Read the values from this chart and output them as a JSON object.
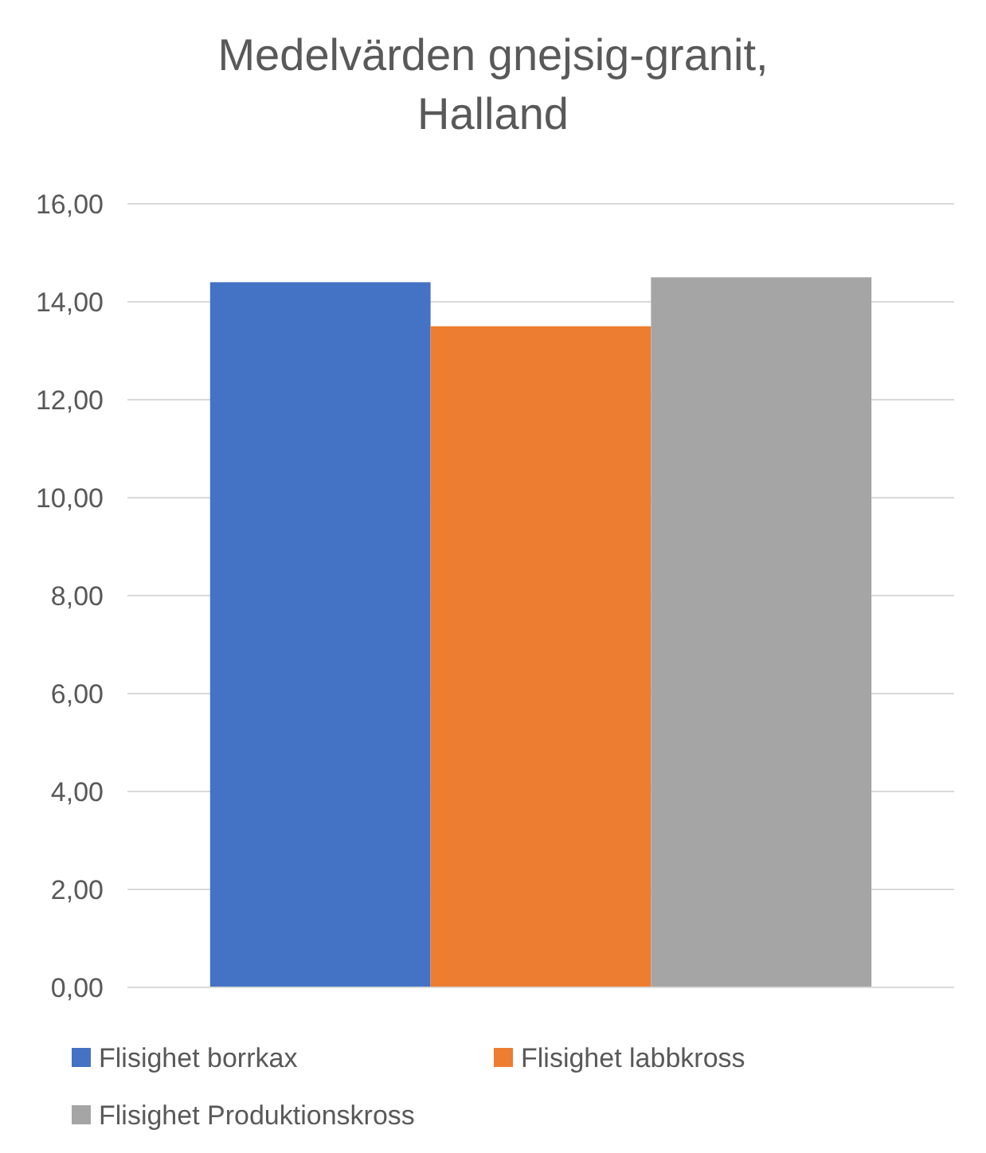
{
  "chart_data": {
    "type": "bar",
    "title": "Medelvärden gnejsig-granit, Halland",
    "categories": [
      null
    ],
    "series": [
      {
        "name": "Flisighet borrkax",
        "color": "#4472c4",
        "values": [
          14.4
        ]
      },
      {
        "name": "Flisighet labbkross",
        "color": "#ed7d31",
        "values": [
          13.5
        ]
      },
      {
        "name": "Flisighet Produktionskross",
        "color": "#a5a5a5",
        "values": [
          14.5
        ]
      }
    ],
    "ylim": [
      0,
      16
    ],
    "yticks": [
      {
        "value": 0,
        "label": "0,00"
      },
      {
        "value": 2,
        "label": "2,00"
      },
      {
        "value": 4,
        "label": "4,00"
      },
      {
        "value": 6,
        "label": "6,00"
      },
      {
        "value": 8,
        "label": "8,00"
      },
      {
        "value": 10,
        "label": "10,00"
      },
      {
        "value": 12,
        "label": "12,00"
      },
      {
        "value": 14,
        "label": "14,00"
      },
      {
        "value": 16,
        "label": "16,00"
      }
    ],
    "grid": "y",
    "legend": "bottom"
  }
}
